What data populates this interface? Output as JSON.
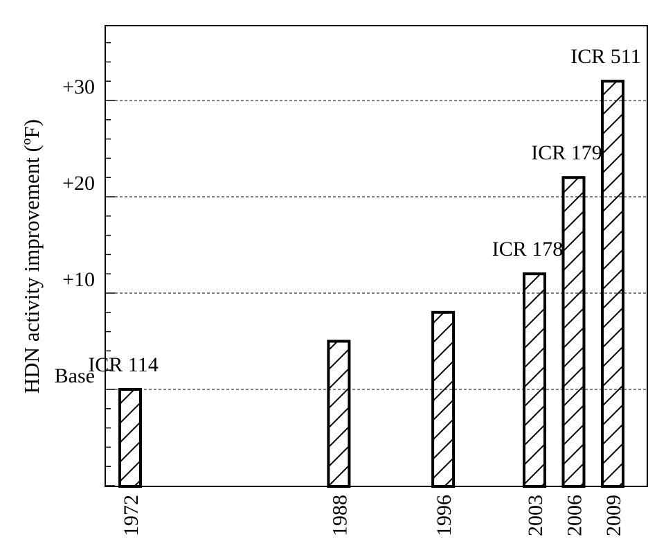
{
  "chart_data": {
    "type": "bar",
    "ylabel": "HDN activity improvement (ºF)",
    "x_values": [
      1972,
      1988,
      1996,
      2003,
      2006,
      2009
    ],
    "categories": [
      "1972",
      "1988",
      "1996",
      "2003",
      "2006",
      "2009"
    ],
    "values": [
      0,
      5,
      8,
      12,
      22,
      32
    ],
    "bar_labels": [
      "ICR 114",
      "",
      "",
      "ICR 178",
      "ICR 179",
      "ICR 511"
    ],
    "x_range": [
      1970,
      2011
    ],
    "ylim": [
      -10,
      38
    ],
    "y_ticks": [
      {
        "value": 0,
        "label": "Base"
      },
      {
        "value": 10,
        "label": "+10"
      },
      {
        "value": 20,
        "label": "+20"
      },
      {
        "value": 30,
        "label": "+30"
      }
    ],
    "reference_lines": [
      0,
      10,
      20,
      30
    ],
    "bar_pattern": "diagonal-hatch",
    "grid": "dashed horizontal lines at reference values",
    "colors": {
      "bar_stroke": "#000000",
      "bar_fill": "#ffffff",
      "hatch": "#000000"
    }
  }
}
